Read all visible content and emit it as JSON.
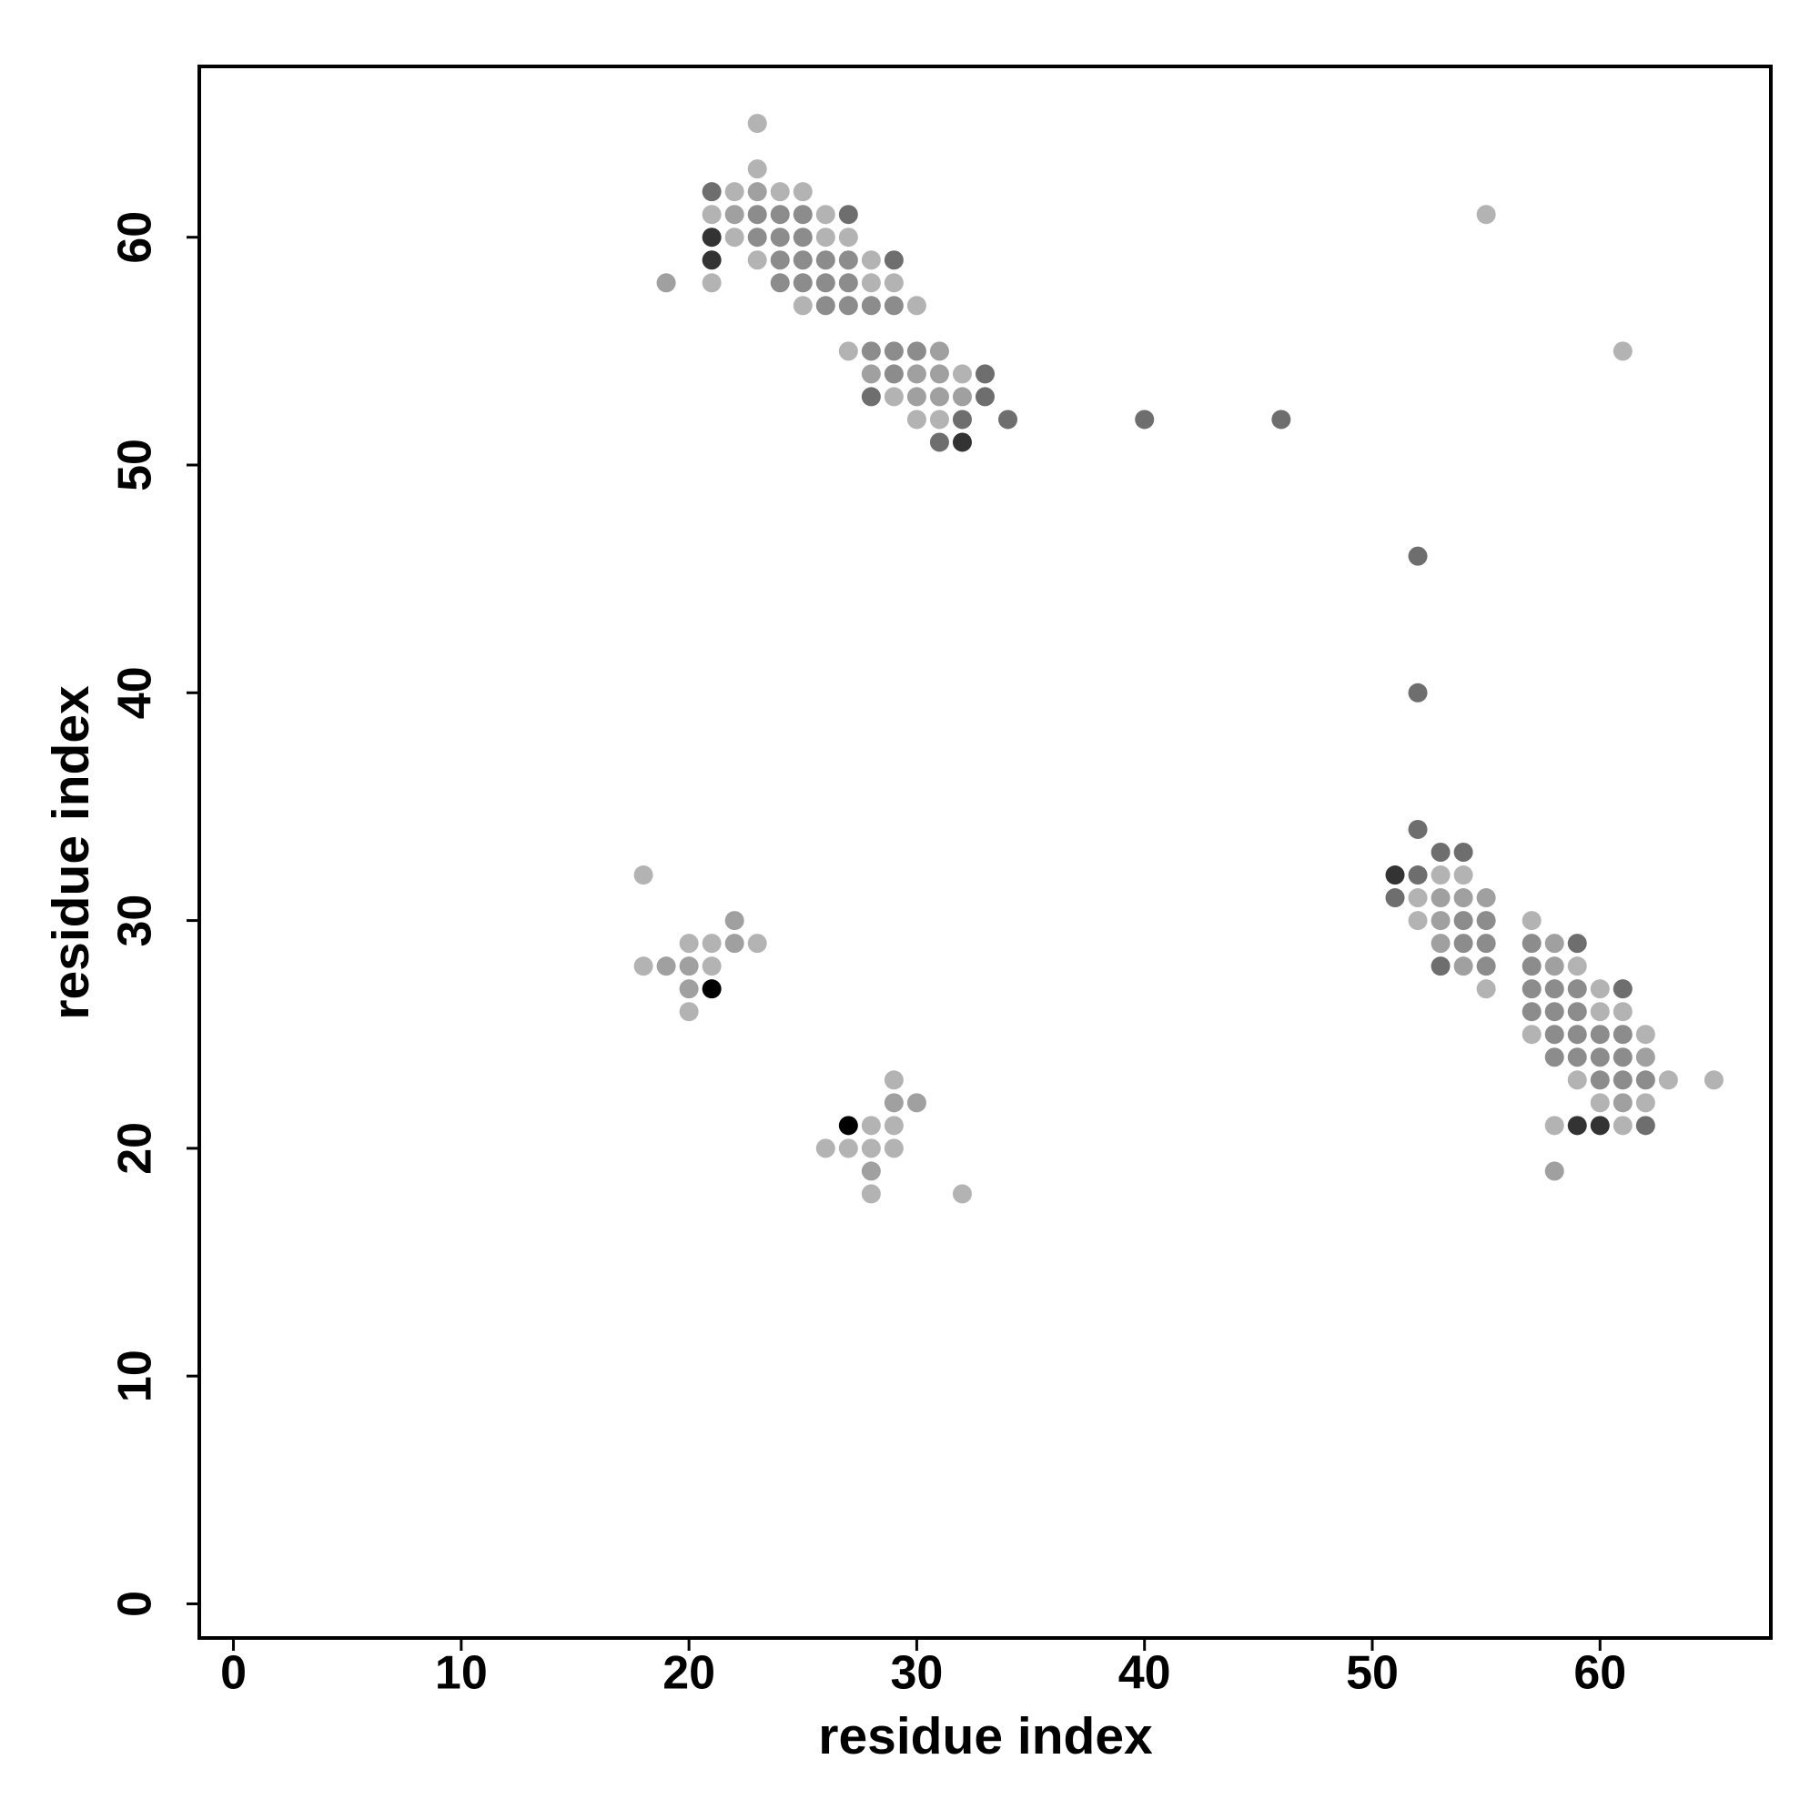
{
  "chart_data": {
    "type": "scatter",
    "xlabel": "residue index",
    "ylabel": "residue index",
    "xlim": [
      -1.5,
      67.5
    ],
    "ylim": [
      -1.5,
      67.5
    ],
    "xticks": [
      0,
      10,
      20,
      30,
      40,
      50,
      60
    ],
    "yticks": [
      0,
      10,
      20,
      30,
      40,
      50,
      60
    ],
    "x": [
      23,
      23,
      21,
      22,
      23,
      24,
      25,
      21,
      22,
      23,
      24,
      25,
      26,
      27,
      21,
      22,
      23,
      24,
      25,
      26,
      27,
      21,
      23,
      24,
      25,
      26,
      27,
      28,
      29,
      19,
      21,
      24,
      25,
      26,
      27,
      28,
      29,
      25,
      26,
      27,
      28,
      29,
      30,
      27,
      28,
      29,
      30,
      31,
      28,
      29,
      30,
      31,
      32,
      33,
      28,
      29,
      30,
      31,
      32,
      33,
      30,
      31,
      32,
      34,
      40,
      46,
      31,
      32,
      55,
      61,
      52,
      52,
      52,
      53,
      54,
      51,
      52,
      53,
      54,
      51,
      52,
      53,
      54,
      55,
      52,
      53,
      54,
      55,
      57,
      53,
      54,
      55,
      57,
      58,
      59,
      53,
      54,
      55,
      57,
      58,
      59,
      55,
      57,
      58,
      59,
      60,
      61,
      57,
      58,
      59,
      60,
      61,
      57,
      58,
      59,
      60,
      61,
      62,
      58,
      59,
      60,
      61,
      62,
      59,
      60,
      61,
      62,
      63,
      65,
      60,
      61,
      62,
      58,
      59,
      60,
      61,
      62,
      58,
      18,
      22,
      20,
      21,
      22,
      23,
      18,
      19,
      20,
      21,
      20,
      21,
      20,
      29,
      29,
      30,
      27,
      28,
      29,
      26,
      27,
      28,
      29,
      28,
      28,
      32
    ],
    "y": [
      65,
      63,
      62,
      62,
      62,
      62,
      62,
      61,
      61,
      61,
      61,
      61,
      61,
      61,
      60,
      60,
      60,
      60,
      60,
      60,
      60,
      59,
      59,
      59,
      59,
      59,
      59,
      59,
      59,
      58,
      58,
      58,
      58,
      58,
      58,
      58,
      58,
      57,
      57,
      57,
      57,
      57,
      57,
      55,
      55,
      55,
      55,
      55,
      54,
      54,
      54,
      54,
      54,
      54,
      53,
      53,
      53,
      53,
      53,
      53,
      52,
      52,
      52,
      52,
      52,
      52,
      51,
      51,
      61,
      55,
      46,
      40,
      34,
      33,
      33,
      32,
      32,
      32,
      32,
      31,
      31,
      31,
      31,
      31,
      30,
      30,
      30,
      30,
      30,
      29,
      29,
      29,
      29,
      29,
      29,
      28,
      28,
      28,
      28,
      28,
      28,
      27,
      27,
      27,
      27,
      27,
      27,
      26,
      26,
      26,
      26,
      26,
      25,
      25,
      25,
      25,
      25,
      25,
      24,
      24,
      24,
      24,
      24,
      23,
      23,
      23,
      23,
      23,
      23,
      22,
      22,
      22,
      21,
      21,
      21,
      21,
      21,
      19,
      32,
      30,
      29,
      29,
      29,
      29,
      28,
      28,
      28,
      28,
      27,
      27,
      26,
      23,
      22,
      22,
      21,
      21,
      21,
      20,
      20,
      20,
      20,
      19,
      18,
      18
    ],
    "colors": [
      "#b3b3b3",
      "#b3b3b3",
      "#6e6e6e",
      "#b3b3b3",
      "#a0a0a0",
      "#b3b3b3",
      "#b3b3b3",
      "#b3b3b3",
      "#a0a0a0",
      "#8c8c8c",
      "#8c8c8c",
      "#8c8c8c",
      "#b3b3b3",
      "#6e6e6e",
      "#333333",
      "#b3b3b3",
      "#8c8c8c",
      "#8c8c8c",
      "#8c8c8c",
      "#b3b3b3",
      "#b3b3b3",
      "#333333",
      "#b3b3b3",
      "#8c8c8c",
      "#8c8c8c",
      "#8c8c8c",
      "#8c8c8c",
      "#b3b3b3",
      "#6e6e6e",
      "#a0a0a0",
      "#b3b3b3",
      "#8c8c8c",
      "#8c8c8c",
      "#8c8c8c",
      "#8c8c8c",
      "#b3b3b3",
      "#b3b3b3",
      "#b3b3b3",
      "#8c8c8c",
      "#8c8c8c",
      "#8c8c8c",
      "#8c8c8c",
      "#b3b3b3",
      "#b3b3b3",
      "#8c8c8c",
      "#8c8c8c",
      "#8c8c8c",
      "#a0a0a0",
      "#a0a0a0",
      "#8c8c8c",
      "#a0a0a0",
      "#a0a0a0",
      "#b3b3b3",
      "#6e6e6e",
      "#6e6e6e",
      "#b3b3b3",
      "#a0a0a0",
      "#a0a0a0",
      "#a0a0a0",
      "#6e6e6e",
      "#b3b3b3",
      "#b3b3b3",
      "#6e6e6e",
      "#6e6e6e",
      "#6e6e6e",
      "#6e6e6e",
      "#6e6e6e",
      "#333333",
      "#b3b3b3",
      "#b3b3b3",
      "#6e6e6e",
      "#6e6e6e",
      "#6e6e6e",
      "#6e6e6e",
      "#6e6e6e",
      "#333333",
      "#6e6e6e",
      "#b3b3b3",
      "#b3b3b3",
      "#6e6e6e",
      "#b3b3b3",
      "#a0a0a0",
      "#a0a0a0",
      "#a0a0a0",
      "#b3b3b3",
      "#a0a0a0",
      "#8c8c8c",
      "#8c8c8c",
      "#b3b3b3",
      "#a0a0a0",
      "#8c8c8c",
      "#8c8c8c",
      "#8c8c8c",
      "#a0a0a0",
      "#6e6e6e",
      "#6e6e6e",
      "#a0a0a0",
      "#8c8c8c",
      "#8c8c8c",
      "#a0a0a0",
      "#b3b3b3",
      "#b3b3b3",
      "#8c8c8c",
      "#8c8c8c",
      "#8c8c8c",
      "#b3b3b3",
      "#6e6e6e",
      "#8c8c8c",
      "#8c8c8c",
      "#8c8c8c",
      "#b3b3b3",
      "#b3b3b3",
      "#b3b3b3",
      "#8c8c8c",
      "#8c8c8c",
      "#8c8c8c",
      "#8c8c8c",
      "#b3b3b3",
      "#8c8c8c",
      "#8c8c8c",
      "#8c8c8c",
      "#8c8c8c",
      "#a0a0a0",
      "#b3b3b3",
      "#8c8c8c",
      "#8c8c8c",
      "#8c8c8c",
      "#b3b3b3",
      "#b3b3b3",
      "#b3b3b3",
      "#a0a0a0",
      "#b3b3b3",
      "#b3b3b3",
      "#333333",
      "#333333",
      "#b3b3b3",
      "#6e6e6e",
      "#a0a0a0",
      "#b3b3b3",
      "#a0a0a0",
      "#b3b3b3",
      "#b3b3b3",
      "#a0a0a0",
      "#b3b3b3",
      "#b3b3b3",
      "#a0a0a0",
      "#a0a0a0",
      "#b3b3b3",
      "#a0a0a0",
      "#000000",
      "#b3b3b3",
      "#b3b3b3",
      "#a0a0a0",
      "#a0a0a0",
      "#000000",
      "#b3b3b3",
      "#b3b3b3",
      "#b3b3b3",
      "#b3b3b3",
      "#b3b3b3",
      "#b3b3b3",
      "#a0a0a0",
      "#b3b3b3",
      "#b3b3b3"
    ]
  }
}
